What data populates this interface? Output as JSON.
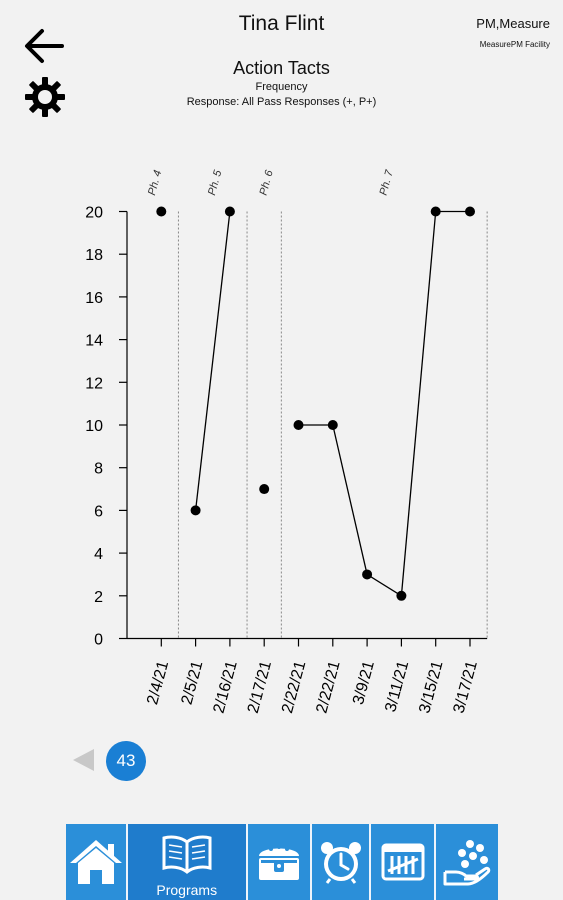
{
  "header": {
    "patient_name": "Tina Flint",
    "org_line1": "PM,Measure",
    "org_line2": "MeasurePM Facility"
  },
  "chart_data": {
    "type": "line",
    "title": "Action Tacts",
    "subtitle": "Frequency",
    "response_filter": "Response: All Pass Responses (+, P+)",
    "categories": [
      "2/4/21",
      "2/5/21",
      "2/16/21",
      "2/17/21",
      "2/22/21",
      "2/22/21",
      "3/9/21",
      "3/11/21",
      "3/15/21",
      "3/17/21"
    ],
    "values": [
      20,
      6,
      20,
      7,
      10,
      10,
      3,
      2,
      20,
      20
    ],
    "segments": [
      [
        0
      ],
      [
        1,
        2
      ],
      [
        3
      ],
      [
        4,
        5,
        6,
        7,
        8,
        9
      ]
    ],
    "phase_labels": [
      "Ph. 4",
      "Ph. 5",
      "Ph. 6",
      "Ph. 7"
    ],
    "yticks": [
      0,
      2,
      4,
      6,
      8,
      10,
      12,
      14,
      16,
      18,
      20
    ],
    "ylim": [
      0,
      20
    ],
    "grid": false,
    "marker_color": "#000000"
  },
  "pager": {
    "page_number": "43"
  },
  "nav": {
    "items": [
      {
        "name": "home",
        "label": ""
      },
      {
        "name": "programs",
        "label": "Programs"
      },
      {
        "name": "treasure-chest",
        "label": ""
      },
      {
        "name": "alarm-clock",
        "label": ""
      },
      {
        "name": "tally",
        "label": ""
      },
      {
        "name": "hand-coins",
        "label": ""
      }
    ],
    "bar_color": "#2b8fd9"
  }
}
